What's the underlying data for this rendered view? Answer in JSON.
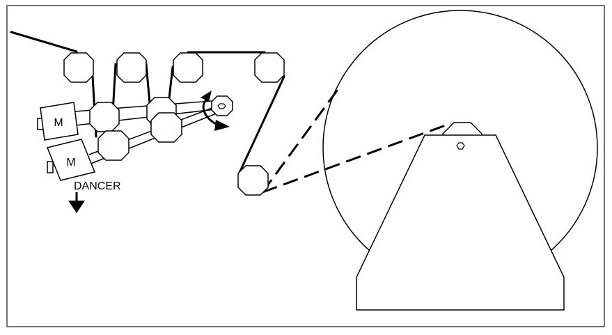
{
  "diagram": {
    "motor_labels": [
      "M",
      "M"
    ],
    "dancer_label": "DANCER",
    "colors": {
      "stroke": "#000000",
      "background": "#ffffff",
      "frame": "#444444"
    }
  }
}
